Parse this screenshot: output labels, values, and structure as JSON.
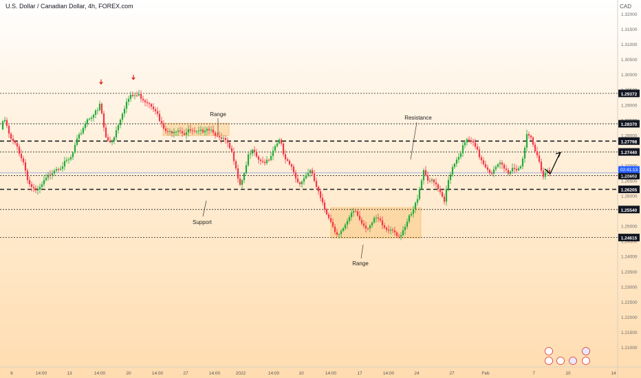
{
  "header": {
    "title": "U.S. Dollar / Canadian Dollar, 4h, FOREX.com",
    "currency": "CAD"
  },
  "colors": {
    "up": "#22ab36",
    "down": "#f23645",
    "line": "#1e1e1e",
    "range_fill": "#f5b04a",
    "current_price": "#2962ff",
    "arrow_marker": "#e0312d"
  },
  "chart_data": {
    "type": "candlestick",
    "ylim": [
      1.2,
      1.32
    ],
    "price_ticks": [
      "1.32000",
      "1.31500",
      "1.31000",
      "1.30500",
      "1.30000",
      "1.29500",
      "1.29000",
      "1.28500",
      "1.28000",
      "1.27500",
      "1.27000",
      "1.26500",
      "1.26000",
      "1.25500",
      "1.25000",
      "1.24500",
      "1.24000",
      "1.23500",
      "1.23000",
      "1.22500",
      "1.22000",
      "1.21500",
      "1.21000"
    ],
    "date_ticks": [
      "6",
      "14:00",
      "13",
      "14:00",
      "20",
      "14:00",
      "27",
      "14:00",
      "2022",
      "14:00",
      "10",
      "14:00",
      "17",
      "14:00",
      "24",
      "27",
      "Feb",
      "7",
      "10",
      "14"
    ],
    "levels": [
      {
        "price": "1.29372",
        "style": "dotted"
      },
      {
        "price": "1.28370",
        "style": "dotted"
      },
      {
        "price": "1.27798",
        "style": "dashed"
      },
      {
        "price": "1.27440",
        "style": "dotted"
      },
      {
        "price": "1.26660",
        "style": "dotted"
      },
      {
        "price": "1.26205",
        "style": "dashed"
      },
      {
        "price": "1.25540",
        "style": "dotted"
      },
      {
        "price": "1.24615",
        "style": "dotted"
      }
    ],
    "current_price": {
      "price": "1.26745",
      "countdown": "02:41:13"
    },
    "annotations": [
      "Range",
      "Resistance",
      "Support",
      "Range"
    ],
    "path": [
      [
        0,
        1.281
      ],
      [
        4,
        1.2845
      ],
      [
        9,
        1.284
      ],
      [
        14,
        1.279
      ],
      [
        25,
        1.276
      ],
      [
        34,
        1.271
      ],
      [
        42,
        1.264
      ],
      [
        48,
        1.2625
      ],
      [
        52,
        1.261
      ],
      [
        57,
        1.262
      ],
      [
        64,
        1.2645
      ],
      [
        72,
        1.267
      ],
      [
        80,
        1.269
      ],
      [
        88,
        1.2695
      ],
      [
        96,
        1.271
      ],
      [
        104,
        1.2725
      ],
      [
        110,
        1.277
      ],
      [
        118,
        1.281
      ],
      [
        126,
        1.285
      ],
      [
        134,
        1.2865
      ],
      [
        142,
        1.288
      ],
      [
        146,
        1.2905
      ],
      [
        150,
        1.2835
      ],
      [
        154,
        1.279
      ],
      [
        159,
        1.2775
      ],
      [
        165,
        1.279
      ],
      [
        171,
        1.283
      ],
      [
        177,
        1.287
      ],
      [
        183,
        1.2905
      ],
      [
        189,
        1.2925
      ],
      [
        195,
        1.293
      ],
      [
        203,
        1.293
      ],
      [
        210,
        1.2915
      ],
      [
        218,
        1.2905
      ],
      [
        226,
        1.2885
      ],
      [
        232,
        1.2845
      ],
      [
        238,
        1.282
      ],
      [
        244,
        1.2805
      ],
      [
        252,
        1.2815
      ],
      [
        260,
        1.282
      ],
      [
        268,
        1.2805
      ],
      [
        276,
        1.2815
      ],
      [
        284,
        1.2805
      ],
      [
        292,
        1.281
      ],
      [
        300,
        1.2825
      ],
      [
        310,
        1.2815
      ],
      [
        318,
        1.2785
      ],
      [
        326,
        1.2785
      ],
      [
        334,
        1.2755
      ],
      [
        342,
        1.271
      ],
      [
        348,
        1.2635
      ],
      [
        354,
        1.2665
      ],
      [
        360,
        1.2725
      ],
      [
        367,
        1.2745
      ],
      [
        374,
        1.2725
      ],
      [
        380,
        1.2705
      ],
      [
        386,
        1.2715
      ],
      [
        392,
        1.2725
      ],
      [
        398,
        1.2755
      ],
      [
        404,
        1.2785
      ],
      [
        408,
        1.2775
      ],
      [
        414,
        1.2715
      ],
      [
        420,
        1.2705
      ],
      [
        426,
        1.2685
      ],
      [
        432,
        1.2645
      ],
      [
        438,
        1.2645
      ],
      [
        444,
        1.2665
      ],
      [
        450,
        1.2685
      ],
      [
        456,
        1.2655
      ],
      [
        462,
        1.2615
      ],
      [
        468,
        1.2575
      ],
      [
        474,
        1.2545
      ],
      [
        480,
        1.2525
      ],
      [
        486,
        1.2485
      ],
      [
        492,
        1.2475
      ],
      [
        498,
        1.2485
      ],
      [
        504,
        1.2505
      ],
      [
        510,
        1.2535
      ],
      [
        516,
        1.2555
      ],
      [
        522,
        1.2525
      ],
      [
        528,
        1.2505
      ],
      [
        534,
        1.2495
      ],
      [
        540,
        1.2505
      ],
      [
        546,
        1.2525
      ],
      [
        552,
        1.2515
      ],
      [
        558,
        1.2495
      ],
      [
        564,
        1.2485
      ],
      [
        570,
        1.2495
      ],
      [
        576,
        1.2475
      ],
      [
        582,
        1.2465
      ],
      [
        588,
        1.2485
      ],
      [
        594,
        1.2525
      ],
      [
        600,
        1.2545
      ],
      [
        606,
        1.2585
      ],
      [
        612,
        1.2645
      ],
      [
        616,
        1.2685
      ],
      [
        622,
        1.2655
      ],
      [
        628,
        1.2645
      ],
      [
        634,
        1.2635
      ],
      [
        640,
        1.2605
      ],
      [
        646,
        1.2575
      ],
      [
        650,
        1.2635
      ],
      [
        656,
        1.2685
      ],
      [
        662,
        1.2715
      ],
      [
        668,
        1.2735
      ],
      [
        674,
        1.2765
      ],
      [
        680,
        1.2785
      ],
      [
        686,
        1.2775
      ],
      [
        692,
        1.2755
      ],
      [
        698,
        1.2725
      ],
      [
        704,
        1.2705
      ],
      [
        710,
        1.2685
      ],
      [
        716,
        1.2675
      ],
      [
        722,
        1.2695
      ],
      [
        728,
        1.2705
      ],
      [
        734,
        1.2685
      ],
      [
        740,
        1.2675
      ],
      [
        746,
        1.2695
      ],
      [
        752,
        1.2685
      ],
      [
        758,
        1.2705
      ],
      [
        762,
        1.2745
      ],
      [
        766,
        1.2795
      ],
      [
        772,
        1.2785
      ],
      [
        778,
        1.2745
      ],
      [
        784,
        1.2715
      ],
      [
        790,
        1.2665
      ],
      [
        796,
        1.2685
      ],
      [
        800,
        1.2675
      ]
    ],
    "range_boxes": [
      {
        "x": [
          237,
          333
        ],
        "price": [
          1.2838,
          1.2798
        ]
      },
      {
        "x": [
          481,
          612
        ],
        "price": [
          1.256,
          1.246
        ]
      }
    ],
    "signal_arrows": [
      {
        "x": 147,
        "price": 1.297
      },
      {
        "x": 194,
        "price": 1.2985
      }
    ],
    "forecast": [
      [
        792,
        1.2688
      ],
      [
        800,
        1.2672
      ],
      [
        814,
        1.274
      ]
    ]
  }
}
